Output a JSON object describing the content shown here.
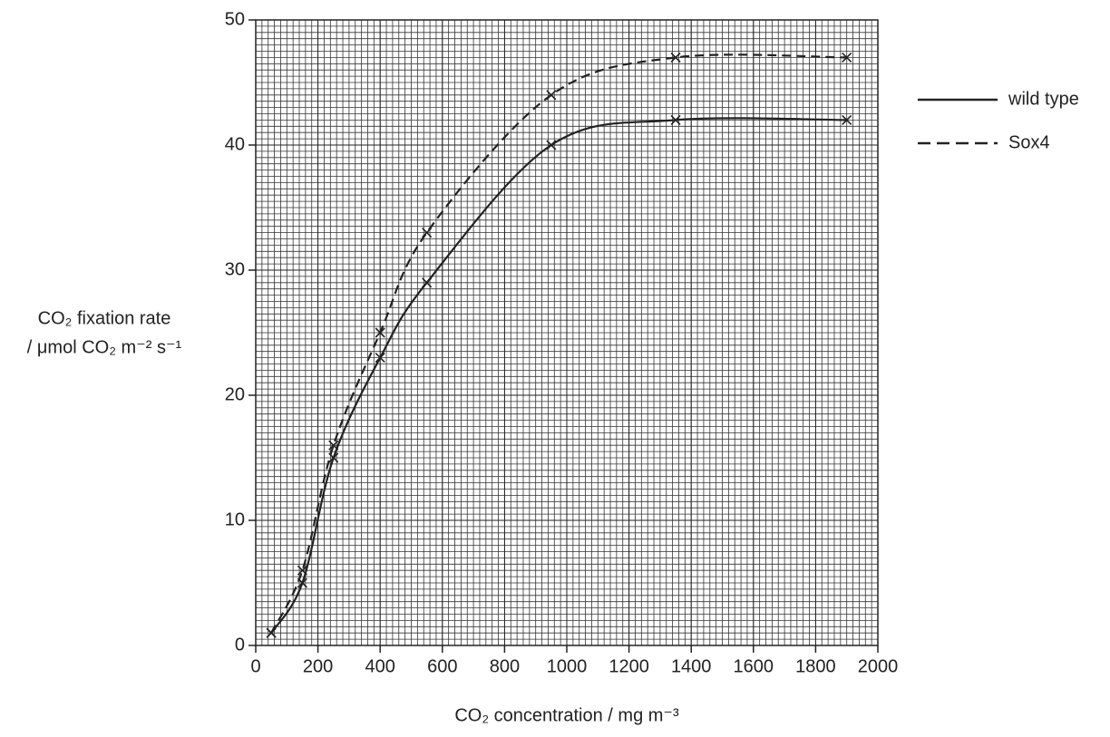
{
  "chart_data": {
    "type": "line",
    "xlabel": "CO₂ concentration / mg m⁻³",
    "ylabel": [
      "CO₂ fixation rate",
      "/ μmol CO₂ m⁻² s⁻¹"
    ],
    "x": [
      50,
      150,
      250,
      400,
      550,
      950,
      1350,
      1900
    ],
    "series": [
      {
        "name": "wild type",
        "color": "#222222",
        "dash": "solid",
        "values": [
          1,
          5,
          15,
          23,
          29,
          40,
          42,
          42
        ]
      },
      {
        "name": "Sox4",
        "color": "#222222",
        "dash": "dashed",
        "values": [
          1,
          6,
          16,
          25,
          33,
          44,
          47,
          47
        ]
      }
    ],
    "xlim": [
      0,
      2000
    ],
    "xticks": [
      0,
      200,
      400,
      600,
      800,
      1000,
      1200,
      1400,
      1600,
      1800,
      2000
    ],
    "ylim": [
      0,
      50
    ],
    "yticks": [
      0,
      10,
      20,
      30,
      40,
      50
    ],
    "grid": true,
    "legend": "right"
  }
}
